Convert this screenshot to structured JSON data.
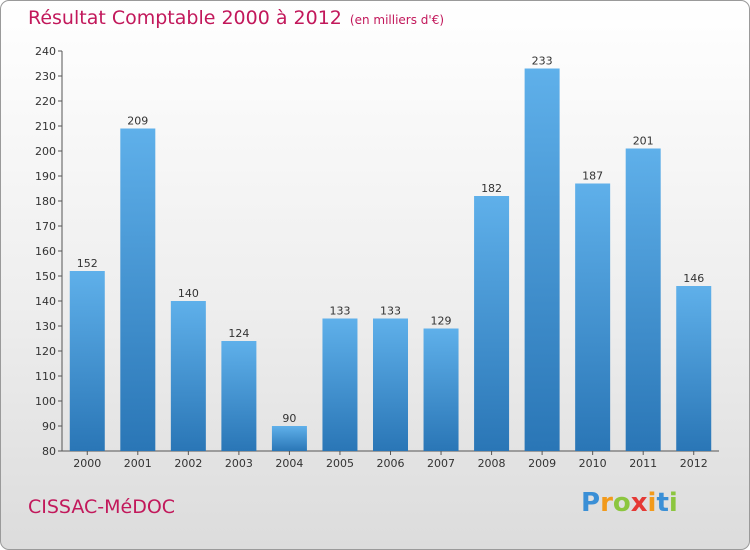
{
  "title": "Résultat Comptable 2000 à 2012",
  "subtitle": "(en milliers d'€)",
  "commune": "CISSAC-MéDOC",
  "logo": {
    "letters": [
      "P",
      "r",
      "o",
      "x",
      "i",
      "t",
      "i"
    ],
    "colors": [
      "#3a8fd6",
      "#f29a1b",
      "#8cc63f",
      "#e53935",
      "#f29a1b",
      "#3a8fd6",
      "#8cc63f"
    ]
  },
  "colors": {
    "title": "#c2185b",
    "bar_top": "#5fb0ea",
    "bar_bottom": "#2a76b6"
  },
  "chart_data": {
    "type": "bar",
    "categories": [
      "2000",
      "2001",
      "2002",
      "2003",
      "2004",
      "2005",
      "2006",
      "2007",
      "2008",
      "2009",
      "2010",
      "2011",
      "2012"
    ],
    "values": [
      152,
      209,
      140,
      124,
      90,
      133,
      133,
      129,
      182,
      233,
      187,
      201,
      146
    ],
    "ylim": [
      80,
      240
    ],
    "yticks": [
      80,
      90,
      100,
      110,
      120,
      130,
      140,
      150,
      160,
      170,
      180,
      190,
      200,
      210,
      220,
      230,
      240
    ],
    "grid": false,
    "data_labels": true
  }
}
